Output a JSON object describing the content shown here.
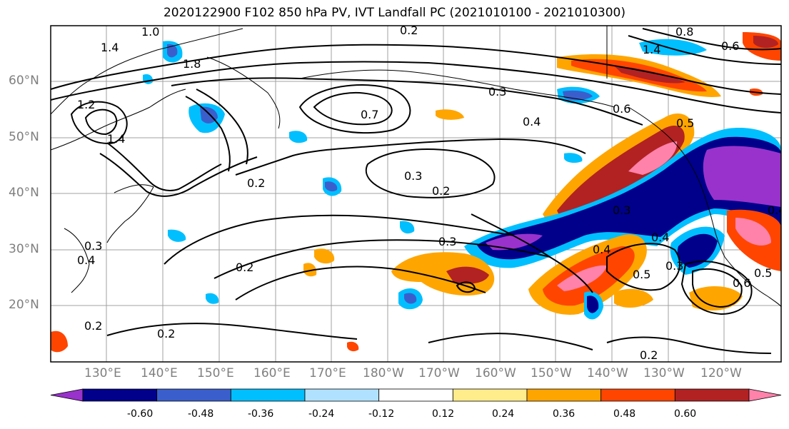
{
  "title": "2020122900 F102 850 hPa PV, IVT Landfall PC (2021010100 - 2021010300)",
  "lat_labels": [
    "60°N",
    "50°N",
    "40°N",
    "30°N",
    "20°N"
  ],
  "lon_labels": [
    "130°E",
    "140°E",
    "150°E",
    "160°E",
    "170°E",
    "180°W",
    "170°W",
    "160°W",
    "150°W",
    "140°W",
    "130°W",
    "120°W"
  ],
  "contour_labels": [
    "1.4",
    "1.0",
    "1.8",
    "1.2",
    "1.4",
    "0.3",
    "0.7",
    "0.6",
    "0.4",
    "0.5",
    "0.2",
    "0.3",
    "0.2",
    "0.3",
    "0.2",
    "0.4",
    "0.3",
    "0.2",
    "0.3",
    "0.4",
    "0.4",
    "0.5",
    "0.3",
    "0.6",
    "0.5",
    "0.2",
    "0.2",
    "0.2",
    "1.4",
    "0.6",
    "0.8",
    "0.4"
  ],
  "colorbar": {
    "tick_labels": [
      "-0.60",
      "-0.48",
      "-0.36",
      "-0.24",
      "-0.12",
      "0.12",
      "0.24",
      "0.36",
      "0.48",
      "0.60"
    ],
    "colors": [
      "#9932cc",
      "#00008b",
      "#3a5fcd",
      "#00bfff",
      "#b0e2ff",
      "#ffffff",
      "#ffec8b",
      "#ffa500",
      "#ff4500",
      "#b22222",
      "#ff82ab"
    ]
  }
}
